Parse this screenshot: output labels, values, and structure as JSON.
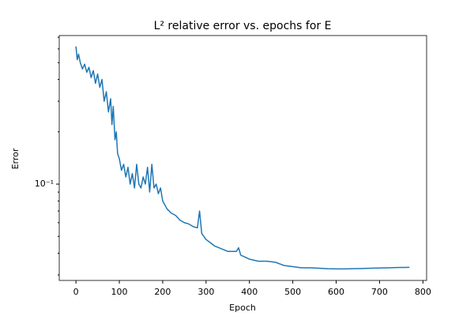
{
  "chart_data": {
    "type": "line",
    "title": "L² relative error vs. epochs for E",
    "xlabel": "Epoch",
    "ylabel": "Error",
    "log_y": true,
    "x": [
      0,
      3,
      6,
      10,
      15,
      20,
      25,
      30,
      35,
      40,
      45,
      50,
      55,
      60,
      65,
      70,
      75,
      80,
      83,
      86,
      90,
      93,
      96,
      100,
      105,
      110,
      115,
      120,
      125,
      130,
      135,
      140,
      145,
      150,
      155,
      160,
      165,
      170,
      175,
      180,
      185,
      190,
      195,
      200,
      210,
      220,
      230,
      240,
      250,
      260,
      270,
      280,
      285,
      290,
      300,
      310,
      320,
      330,
      340,
      350,
      360,
      370,
      375,
      380,
      390,
      400,
      420,
      440,
      460,
      480,
      500,
      520,
      540,
      560,
      580,
      600,
      620,
      640,
      660,
      680,
      700,
      720,
      740,
      769
    ],
    "series": [
      {
        "name": "E",
        "color": "#1f77b4",
        "values": [
          0.62,
          0.52,
          0.56,
          0.5,
          0.46,
          0.49,
          0.44,
          0.47,
          0.41,
          0.45,
          0.38,
          0.43,
          0.36,
          0.4,
          0.3,
          0.34,
          0.26,
          0.31,
          0.22,
          0.28,
          0.18,
          0.2,
          0.15,
          0.14,
          0.12,
          0.13,
          0.11,
          0.125,
          0.1,
          0.115,
          0.095,
          0.13,
          0.1,
          0.095,
          0.11,
          0.1,
          0.125,
          0.09,
          0.13,
          0.095,
          0.1,
          0.088,
          0.095,
          0.08,
          0.072,
          0.068,
          0.066,
          0.062,
          0.06,
          0.059,
          0.057,
          0.056,
          0.07,
          0.052,
          0.048,
          0.046,
          0.044,
          0.043,
          0.042,
          0.041,
          0.041,
          0.041,
          0.043,
          0.039,
          0.038,
          0.037,
          0.036,
          0.036,
          0.0355,
          0.034,
          0.0335,
          0.033,
          0.033,
          0.0328,
          0.0326,
          0.0325,
          0.0325,
          0.0326,
          0.0327,
          0.0328,
          0.0329,
          0.033,
          0.0331,
          0.0332
        ]
      }
    ],
    "xlim": [
      -38.5,
      808.5
    ],
    "xticks": [
      0,
      100,
      200,
      300,
      400,
      500,
      600,
      700,
      800
    ],
    "ylim": [
      0.0279,
      0.716
    ],
    "yticks": [
      {
        "value": 0.1,
        "label": "10⁻¹"
      }
    ],
    "minor_yticks": [
      0.03,
      0.04,
      0.05,
      0.06,
      0.07,
      0.08,
      0.09,
      0.2,
      0.3,
      0.4,
      0.5,
      0.6,
      0.7
    ]
  }
}
